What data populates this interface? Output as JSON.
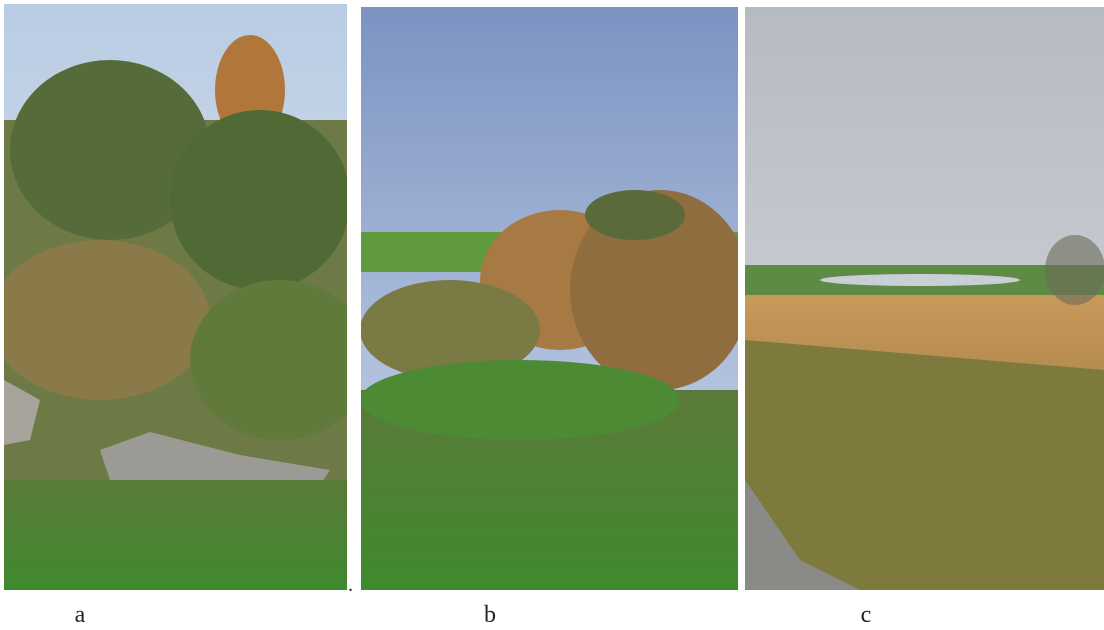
{
  "panels": [
    {
      "label": "a"
    },
    {
      "label": "b"
    },
    {
      "label": "c"
    }
  ],
  "stray_mark": "."
}
